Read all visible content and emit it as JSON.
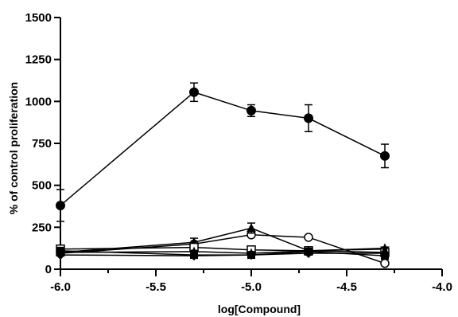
{
  "chart_data": {
    "type": "line",
    "title": "",
    "xlabel": "log[Compound]",
    "ylabel": "% of control proliferation",
    "xlim": [
      -6.0,
      -4.0
    ],
    "ylim": [
      0,
      1500
    ],
    "xticks": [
      -6.0,
      -5.5,
      -5.0,
      -4.5,
      -4.0
    ],
    "xtick_labels": [
      "-6.0",
      "-5.5",
      "-5.0",
      "-4.5",
      "-4.0"
    ],
    "xminor_ticks": [
      -5.75,
      -5.25,
      -4.75,
      -4.25
    ],
    "yticks": [
      0,
      250,
      500,
      750,
      1000,
      1250,
      1500
    ],
    "ytick_labels": [
      "0",
      "250",
      "500",
      "750",
      "1000",
      "1250",
      "1500"
    ],
    "grid": false,
    "legend": "none",
    "series": [
      {
        "marker": "filled-circle",
        "x": [
          -6.0,
          -5.3,
          -5.0,
          -4.7,
          -4.3
        ],
        "y": [
          380,
          1055,
          945,
          900,
          675
        ],
        "err": [
          95,
          55,
          35,
          80,
          70
        ]
      },
      {
        "marker": "open-circle",
        "x": [
          -6.0,
          -5.3,
          -5.0,
          -4.7,
          -4.3
        ],
        "y": [
          95,
          150,
          205,
          190,
          35
        ],
        "err": [
          0,
          0,
          0,
          0,
          0
        ]
      },
      {
        "marker": "filled-triangle",
        "x": [
          -6.0,
          -5.3,
          -5.0,
          -4.7,
          -4.3
        ],
        "y": [
          100,
          160,
          245,
          110,
          120
        ],
        "err": [
          0,
          25,
          30,
          0,
          0
        ]
      },
      {
        "marker": "open-square",
        "x": [
          -6.0,
          -5.3,
          -5.0,
          -4.7,
          -4.3
        ],
        "y": [
          120,
          130,
          115,
          110,
          100
        ],
        "err": [
          0,
          0,
          0,
          0,
          0
        ]
      },
      {
        "marker": "filled-square",
        "x": [
          -6.0,
          -5.3,
          -5.0,
          -4.7,
          -4.3
        ],
        "y": [
          110,
          85,
          85,
          105,
          80
        ],
        "err": [
          0,
          0,
          0,
          0,
          0
        ]
      },
      {
        "marker": "filled-diamond",
        "x": [
          -6.0,
          -5.3,
          -5.0,
          -4.7,
          -4.3
        ],
        "y": [
          85,
          80,
          85,
          95,
          95
        ],
        "err": [
          0,
          0,
          0,
          0,
          0
        ]
      },
      {
        "marker": "filled-star",
        "x": [
          -6.0,
          -5.3,
          -5.0,
          -4.7,
          -4.3
        ],
        "y": [
          100,
          105,
          95,
          110,
          125
        ],
        "err": [
          0,
          0,
          0,
          0,
          0
        ]
      }
    ]
  }
}
